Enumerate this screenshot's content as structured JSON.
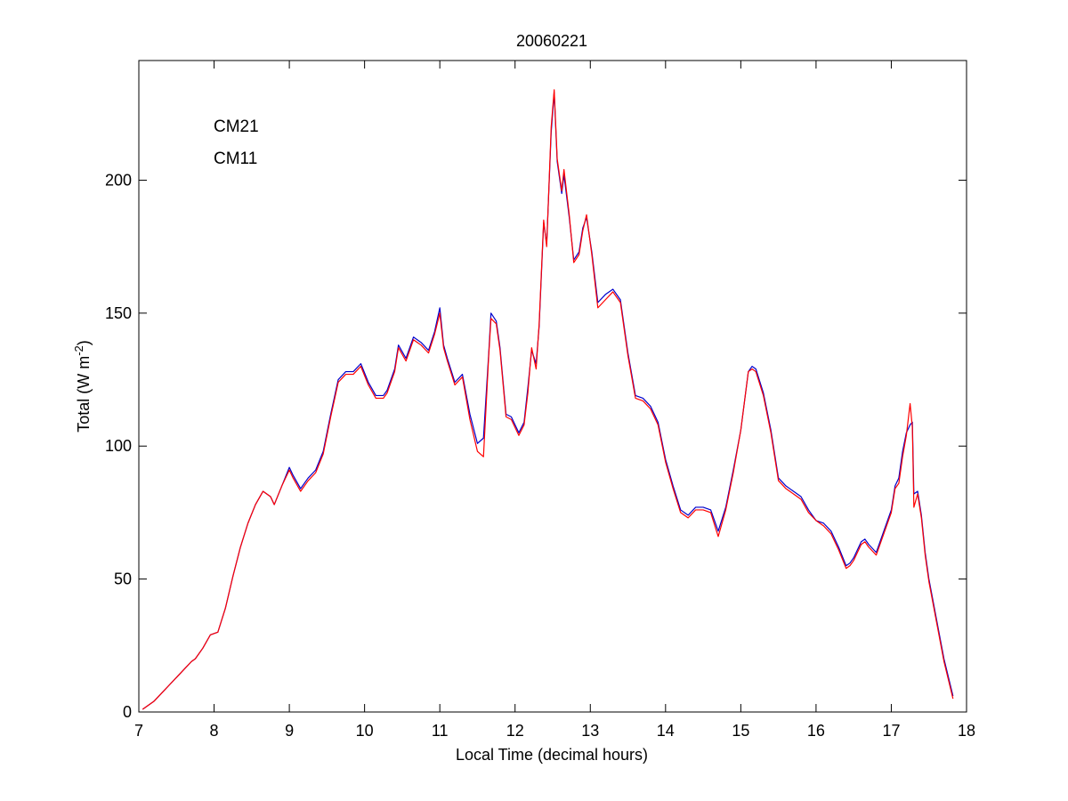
{
  "chart_data": {
    "type": "line",
    "title": "20060221",
    "xlabel": "Local Time (decimal hours)",
    "ylabel": "Total (W m",
    "ylabel_exponent": "-2",
    "ylabel_close": ")",
    "xlim": [
      7,
      18
    ],
    "ylim": [
      0,
      245
    ],
    "xticks": [
      7,
      8,
      9,
      10,
      11,
      12,
      13,
      14,
      15,
      16,
      17,
      18
    ],
    "yticks": [
      0,
      50,
      100,
      150,
      200
    ],
    "grid": false,
    "legend_position": "top-left",
    "series": [
      {
        "name": "CM21",
        "color": "#0000cc",
        "x": [
          7.05,
          7.1,
          7.2,
          7.3,
          7.4,
          7.5,
          7.6,
          7.7,
          7.75,
          7.85,
          7.95,
          8.05,
          8.15,
          8.25,
          8.35,
          8.45,
          8.55,
          8.65,
          8.75,
          8.8,
          8.9,
          9.0,
          9.05,
          9.15,
          9.25,
          9.35,
          9.45,
          9.55,
          9.65,
          9.75,
          9.85,
          9.95,
          10.05,
          10.15,
          10.25,
          10.3,
          10.4,
          10.45,
          10.55,
          10.65,
          10.7,
          10.75,
          10.85,
          10.93,
          11.0,
          11.05,
          11.1,
          11.2,
          11.3,
          11.4,
          11.5,
          11.58,
          11.65,
          11.68,
          11.75,
          11.8,
          11.88,
          11.95,
          12.05,
          12.12,
          12.17,
          12.22,
          12.28,
          12.32,
          12.38,
          12.42,
          12.48,
          12.52,
          12.56,
          12.62,
          12.65,
          12.72,
          12.78,
          12.85,
          12.9,
          12.95,
          13.02,
          13.1,
          13.2,
          13.3,
          13.4,
          13.5,
          13.6,
          13.7,
          13.8,
          13.9,
          14.0,
          14.1,
          14.2,
          14.3,
          14.4,
          14.5,
          14.6,
          14.7,
          14.8,
          14.9,
          15.0,
          15.1,
          15.15,
          15.2,
          15.3,
          15.4,
          15.5,
          15.6,
          15.7,
          15.8,
          15.9,
          16.0,
          16.1,
          16.2,
          16.3,
          16.4,
          16.45,
          16.5,
          16.6,
          16.65,
          16.7,
          16.8,
          16.9,
          17.0,
          17.05,
          17.1,
          17.15,
          17.2,
          17.25,
          17.28,
          17.3,
          17.35,
          17.4,
          17.45,
          17.5,
          17.6,
          17.7,
          17.82
        ],
        "y": [
          1,
          2,
          4,
          7,
          10,
          13,
          16,
          19,
          20,
          24,
          29,
          30,
          39,
          51,
          62,
          71,
          78,
          83,
          81,
          78,
          85,
          92,
          89,
          84,
          88,
          91,
          98,
          112,
          125,
          128,
          128,
          131,
          124,
          119,
          119,
          121,
          129,
          138,
          133,
          141,
          140,
          139,
          136,
          143,
          152,
          138,
          133,
          124,
          127,
          112,
          101,
          103,
          135,
          150,
          147,
          137,
          112,
          111,
          105,
          109,
          122,
          136,
          131,
          145,
          184,
          176,
          218,
          233,
          207,
          195,
          202,
          186,
          170,
          173,
          182,
          186,
          173,
          154,
          157,
          159,
          155,
          135,
          119,
          118,
          115,
          109,
          95,
          85,
          76,
          74,
          77,
          77,
          76,
          68,
          77,
          91,
          106,
          128,
          130,
          129,
          120,
          106,
          88,
          85,
          83,
          81,
          76,
          72,
          71,
          68,
          62,
          55,
          56,
          58,
          64,
          65,
          63,
          60,
          68,
          76,
          85,
          88,
          98,
          105,
          108,
          109,
          82,
          83,
          74,
          60,
          50,
          35,
          20,
          6
        ]
      },
      {
        "name": "CM11",
        "color": "#ff0000",
        "x": [
          7.05,
          7.1,
          7.2,
          7.3,
          7.4,
          7.5,
          7.6,
          7.7,
          7.75,
          7.85,
          7.95,
          8.05,
          8.15,
          8.25,
          8.35,
          8.45,
          8.55,
          8.65,
          8.75,
          8.8,
          8.9,
          9.0,
          9.05,
          9.15,
          9.25,
          9.35,
          9.45,
          9.55,
          9.65,
          9.75,
          9.85,
          9.95,
          10.05,
          10.15,
          10.25,
          10.3,
          10.4,
          10.45,
          10.55,
          10.65,
          10.7,
          10.75,
          10.85,
          10.93,
          11.0,
          11.05,
          11.1,
          11.2,
          11.3,
          11.4,
          11.5,
          11.58,
          11.65,
          11.68,
          11.75,
          11.8,
          11.88,
          11.95,
          12.05,
          12.12,
          12.17,
          12.22,
          12.28,
          12.32,
          12.38,
          12.42,
          12.48,
          12.52,
          12.56,
          12.62,
          12.65,
          12.72,
          12.78,
          12.85,
          12.9,
          12.95,
          13.02,
          13.1,
          13.2,
          13.3,
          13.4,
          13.5,
          13.6,
          13.7,
          13.8,
          13.9,
          14.0,
          14.1,
          14.2,
          14.3,
          14.4,
          14.5,
          14.6,
          14.7,
          14.8,
          14.9,
          15.0,
          15.1,
          15.15,
          15.2,
          15.3,
          15.4,
          15.5,
          15.6,
          15.7,
          15.8,
          15.9,
          16.0,
          16.1,
          16.2,
          16.3,
          16.4,
          16.45,
          16.5,
          16.6,
          16.65,
          16.7,
          16.8,
          16.9,
          17.0,
          17.05,
          17.1,
          17.15,
          17.2,
          17.25,
          17.28,
          17.3,
          17.35,
          17.4,
          17.45,
          17.5,
          17.6,
          17.7,
          17.82
        ],
        "y": [
          1,
          2,
          4,
          7,
          10,
          13,
          16,
          19,
          20,
          24,
          29,
          30,
          39,
          51,
          62,
          71,
          78,
          83,
          81,
          78,
          85,
          91,
          88,
          83,
          87,
          90,
          97,
          111,
          124,
          127,
          127,
          130,
          123,
          118,
          118,
          120,
          128,
          137,
          132,
          140,
          139,
          138,
          135,
          142,
          150,
          137,
          132,
          123,
          126,
          110,
          98,
          96,
          134,
          148,
          146,
          136,
          111,
          110,
          104,
          108,
          120,
          137,
          129,
          146,
          185,
          175,
          220,
          234,
          208,
          196,
          204,
          187,
          169,
          172,
          181,
          187,
          172,
          152,
          155,
          158,
          154,
          134,
          118,
          117,
          114,
          108,
          94,
          84,
          75,
          73,
          76,
          76,
          75,
          66,
          76,
          90,
          106,
          128,
          129,
          128,
          119,
          105,
          87,
          84,
          82,
          80,
          75,
          72,
          70,
          67,
          61,
          54,
          55,
          57,
          63,
          64,
          62,
          59,
          67,
          75,
          84,
          86,
          96,
          104,
          116,
          107,
          77,
          82,
          73,
          59,
          49,
          34,
          19,
          5
        ]
      }
    ]
  }
}
